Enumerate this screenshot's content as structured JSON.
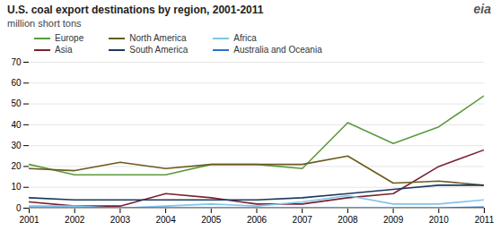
{
  "chart_data": {
    "type": "line",
    "title": "U.S. coal export destinations  by region, 2001-2011",
    "subtitle": "million short tons",
    "annotations": [
      "eia"
    ],
    "x": [
      2001,
      2002,
      2003,
      2004,
      2005,
      2006,
      2007,
      2008,
      2009,
      2010,
      2011
    ],
    "series": [
      {
        "name": "Europe",
        "color": "#5b9a3c",
        "values": [
          21,
          16,
          16,
          16,
          21,
          21,
          19,
          41,
          31,
          39,
          54
        ]
      },
      {
        "name": "Asia",
        "color": "#7b2030",
        "values": [
          3,
          1,
          1,
          7,
          5,
          2,
          2,
          5,
          7,
          20,
          28
        ]
      },
      {
        "name": "North America",
        "color": "#6b5a1e",
        "values": [
          19,
          18,
          22,
          19,
          21,
          21,
          21,
          25,
          12,
          13,
          11
        ]
      },
      {
        "name": "South America",
        "color": "#1a3a5c",
        "values": [
          5,
          4,
          4,
          4,
          4,
          4,
          5,
          7,
          9,
          11,
          11
        ]
      },
      {
        "name": "Africa",
        "color": "#82c4e8",
        "values": [
          1,
          1,
          0,
          1,
          2,
          1,
          3,
          6,
          2,
          2,
          4
        ]
      },
      {
        "name": "Australia and Oceania",
        "color": "#2b70c9",
        "values": [
          0.2,
          0.2,
          0.2,
          0.2,
          0.2,
          0.2,
          0.2,
          0.2,
          0.2,
          0.2,
          0.5
        ]
      }
    ],
    "xlim": [
      2001,
      2011
    ],
    "xticks": [
      2001,
      2002,
      2003,
      2004,
      2005,
      2006,
      2007,
      2008,
      2009,
      2010,
      2011
    ],
    "ylim": [
      0,
      70
    ],
    "yticks": [
      0,
      10,
      20,
      30,
      40,
      50,
      60,
      70
    ],
    "grid": true,
    "legend": "upper left"
  }
}
